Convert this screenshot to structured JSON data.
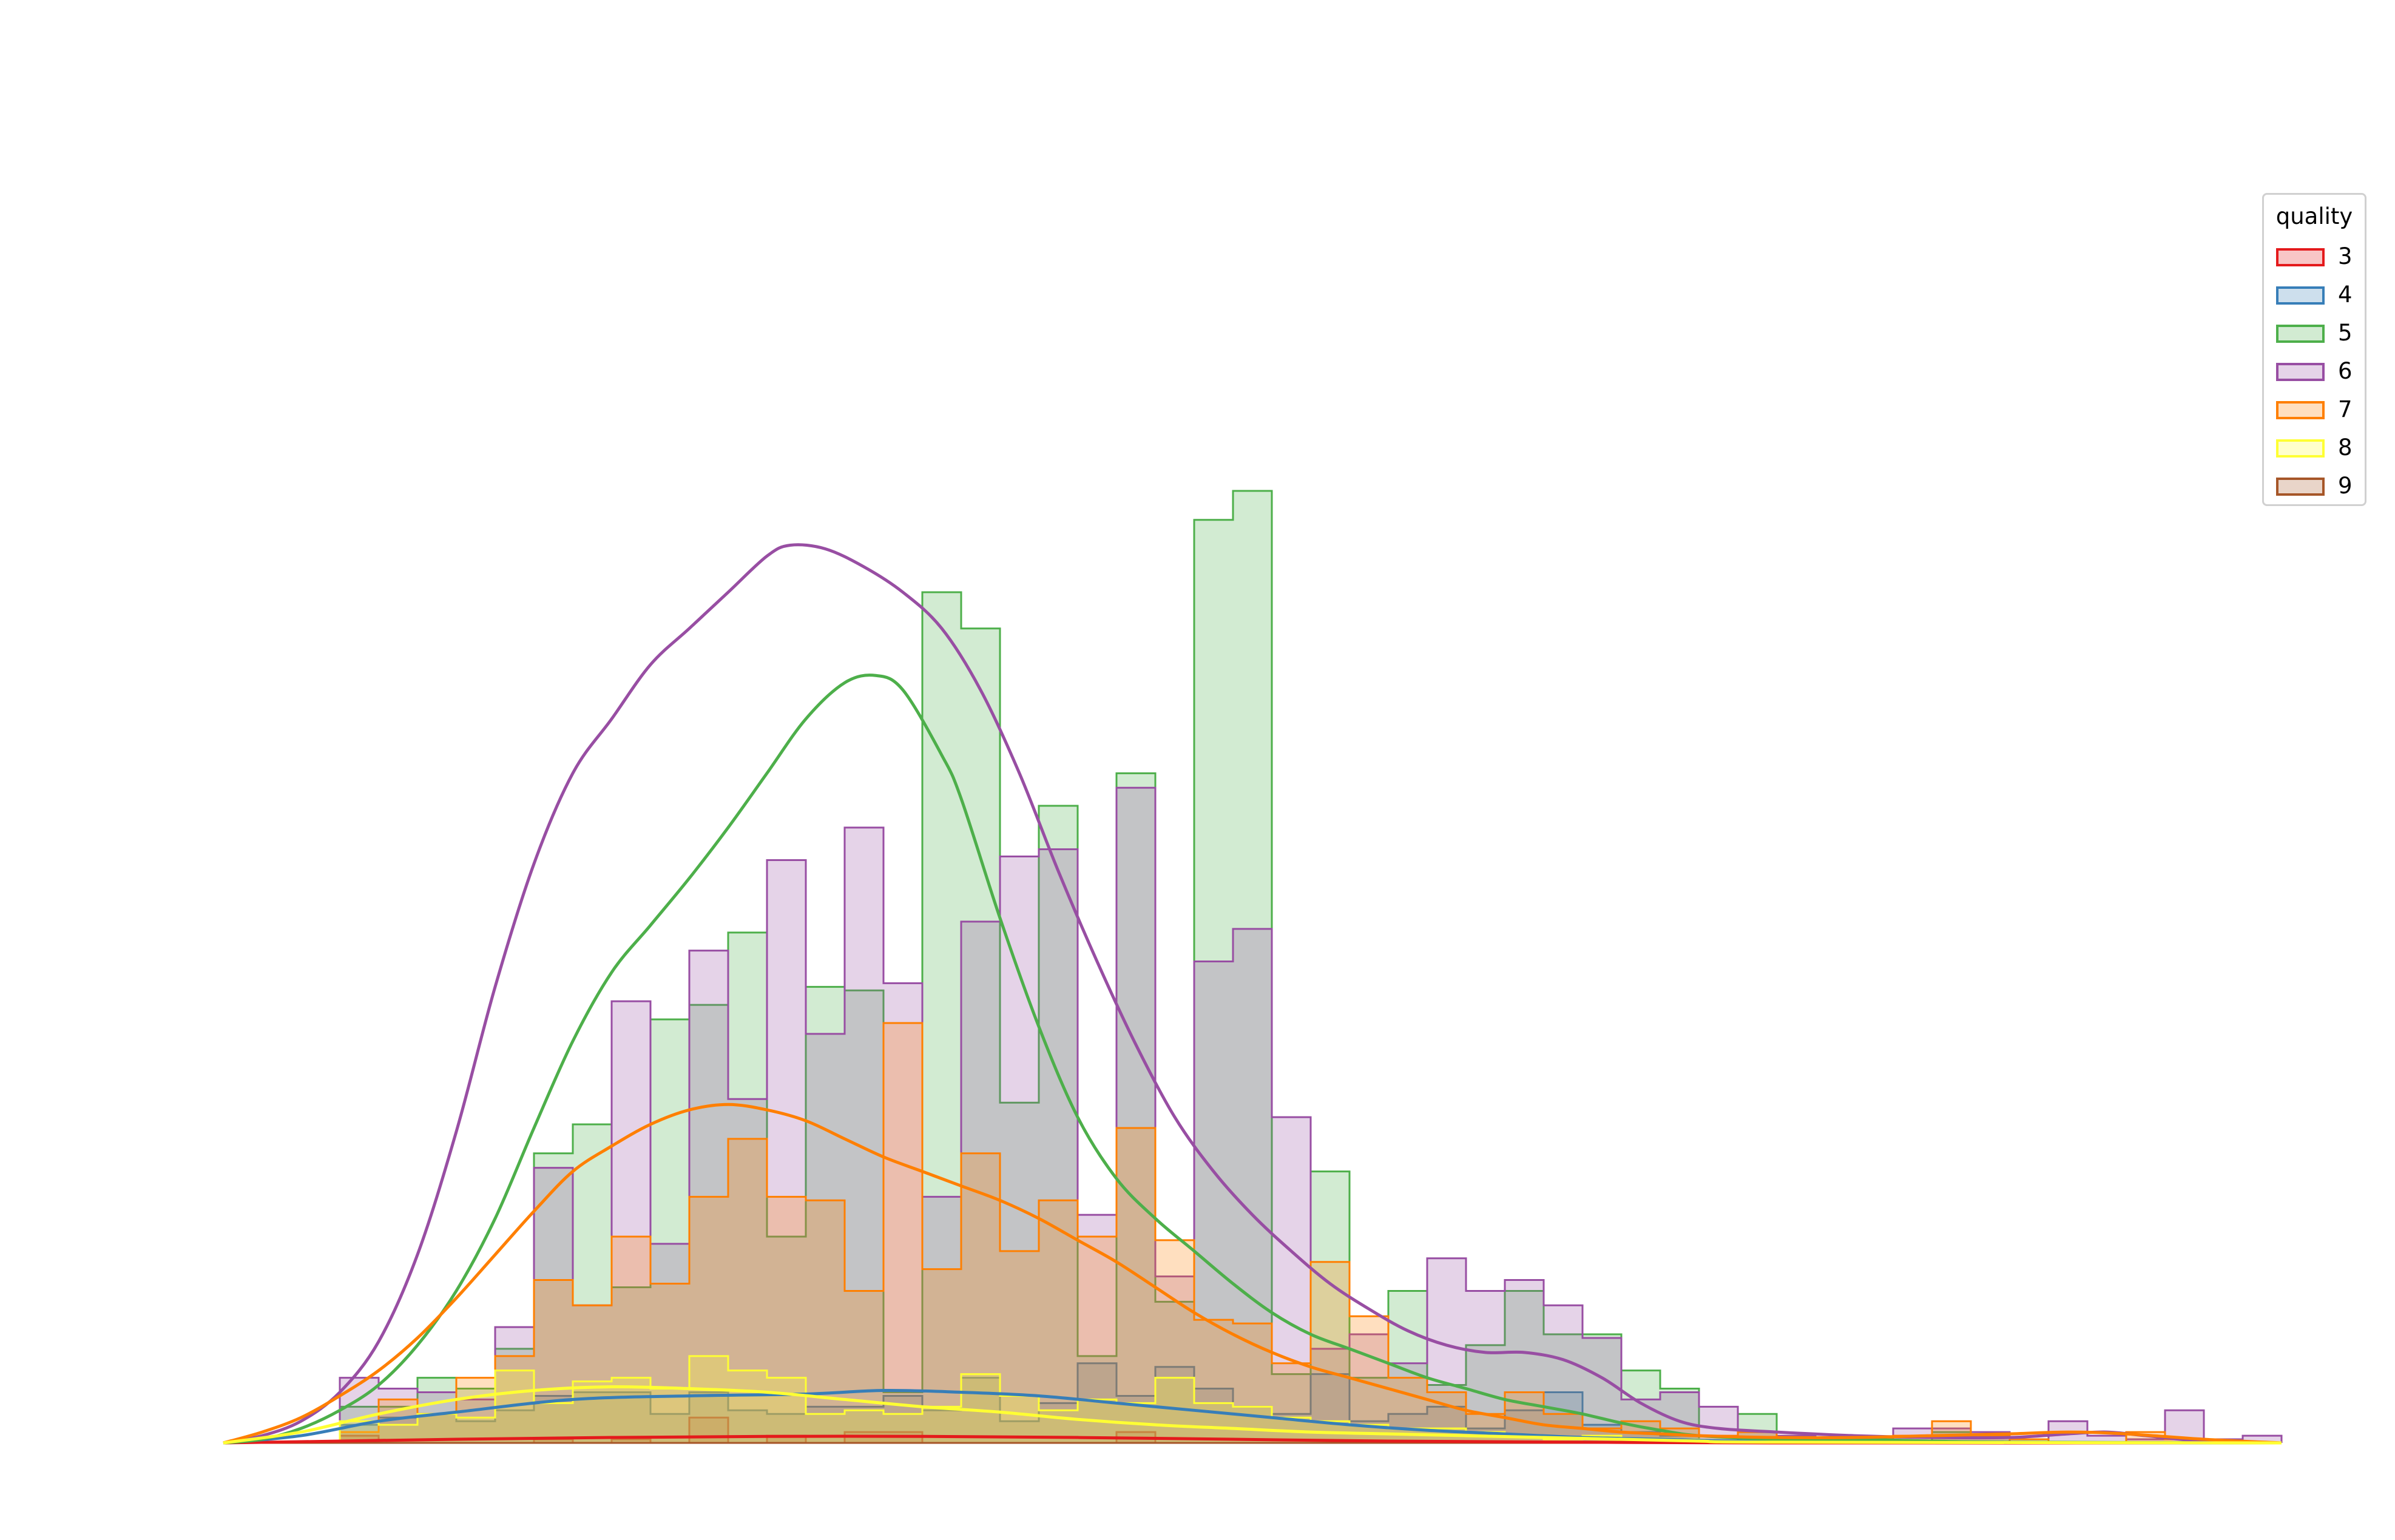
{
  "chart_data": {
    "type": "histogram",
    "xlim": [
      0,
      53
    ],
    "ylim": [
      0,
      35
    ],
    "bins": 53,
    "kde": true,
    "axes_visible": false,
    "legend": {
      "title": "quality",
      "placement": "upper-right"
    },
    "series": [
      {
        "name": "3",
        "color": "#e41a1c",
        "counts": [
          0,
          0,
          0,
          0.2,
          0,
          0,
          0,
          0,
          0.1,
          0,
          0.1,
          0,
          0.7,
          0,
          0.2,
          0,
          0.3,
          0.3,
          0,
          0,
          0,
          0,
          0,
          0.3,
          0,
          0,
          0,
          0,
          0,
          0,
          0,
          0,
          0,
          0,
          0,
          0,
          0,
          0,
          0,
          0,
          0,
          0,
          0,
          0,
          0,
          0,
          0,
          0,
          0,
          0,
          0,
          0,
          0
        ]
      },
      {
        "name": "4",
        "color": "#377eb8",
        "counts": [
          0,
          0,
          0,
          0.5,
          0.7,
          0.8,
          0.6,
          0.9,
          1.3,
          1.4,
          1.4,
          0.8,
          1.4,
          0.9,
          0.8,
          1.0,
          1.0,
          1.3,
          0.9,
          1.8,
          0.6,
          1.1,
          2.2,
          1.3,
          2.1,
          1.5,
          1.0,
          0.8,
          1.9,
          0.6,
          0.8,
          1.0,
          0.4,
          0.9,
          1.4,
          0.5,
          0.3,
          0.2,
          0,
          0,
          0,
          0,
          0,
          0,
          0,
          0,
          0,
          0,
          0,
          0,
          0,
          0,
          0
        ]
      },
      {
        "name": "5",
        "color": "#4daf4a",
        "counts": [
          0,
          0,
          0,
          1.0,
          1.0,
          1.8,
          1.5,
          2.6,
          8.0,
          8.8,
          4.3,
          11.7,
          12.1,
          14.1,
          5.7,
          12.6,
          12.5,
          1.4,
          23.5,
          22.5,
          9.4,
          17.6,
          2.4,
          18.5,
          3.9,
          25.5,
          26.3,
          1.9,
          7.5,
          1.8,
          4.2,
          1.6,
          2.7,
          4.2,
          3.0,
          3.0,
          2.0,
          1.5,
          0,
          0.8,
          0,
          0,
          0,
          0,
          0.3,
          0.2,
          0,
          0,
          0,
          0,
          0,
          0,
          0
        ]
      },
      {
        "name": "6",
        "color": "#984ea3",
        "counts": [
          0,
          0,
          0,
          1.8,
          1.5,
          1.4,
          1.2,
          3.2,
          7.6,
          3.8,
          12.2,
          5.5,
          13.6,
          9.5,
          16.1,
          11.3,
          17.0,
          12.7,
          6.8,
          14.4,
          16.2,
          16.4,
          6.3,
          18.1,
          4.6,
          13.3,
          14.2,
          9.0,
          2.6,
          3.0,
          2.2,
          5.1,
          4.2,
          4.5,
          3.8,
          2.9,
          1.2,
          1.4,
          1.0,
          0.3,
          0.2,
          0.1,
          0,
          0.4,
          0.4,
          0.3,
          0,
          0.6,
          0.2,
          0.1,
          0.9,
          0.1,
          0.2
        ]
      },
      {
        "name": "7",
        "color": "#ff7f00",
        "counts": [
          0,
          0,
          0,
          0.3,
          1.2,
          0.8,
          1.8,
          2.4,
          4.5,
          3.8,
          5.7,
          4.4,
          6.8,
          8.4,
          6.8,
          6.7,
          4.2,
          11.6,
          4.8,
          8.0,
          5.3,
          6.7,
          5.7,
          8.7,
          5.6,
          3.4,
          3.3,
          2.2,
          5.0,
          3.5,
          1.8,
          1.4,
          0.8,
          1.4,
          0.8,
          0.4,
          0.6,
          0.4,
          0.2,
          0.3,
          0.1,
          0.1,
          0.1,
          0.2,
          0.6,
          0.2,
          0.1,
          0,
          0,
          0.3,
          0.1,
          0,
          0
        ]
      },
      {
        "name": "8",
        "color": "#ffff33",
        "counts": [
          0,
          0,
          0,
          0.6,
          0.5,
          0.8,
          0.7,
          2.0,
          1.1,
          1.7,
          1.8,
          1.5,
          2.4,
          2.0,
          1.8,
          0.8,
          0.9,
          0.8,
          1.0,
          1.9,
          1.3,
          0.9,
          1.2,
          1.1,
          1.8,
          1.1,
          1.0,
          0.7,
          0.6,
          0.5,
          0.4,
          0.4,
          0.3,
          0.2,
          0.1,
          0.2,
          0.1,
          0.1,
          0,
          0,
          0,
          0,
          0,
          0,
          0,
          0,
          0,
          0,
          0,
          0,
          0,
          0,
          0
        ]
      },
      {
        "name": "9",
        "color": "#a65628",
        "counts": [
          0,
          0,
          0,
          0,
          0,
          0,
          0,
          0,
          0,
          0,
          0,
          0,
          0,
          0,
          0,
          0,
          0,
          0,
          0,
          0,
          0,
          0,
          0,
          0,
          0,
          0,
          0,
          0,
          0,
          0,
          0,
          0,
          0,
          0,
          0,
          0,
          0,
          0,
          0,
          0,
          0,
          0,
          0,
          0,
          0,
          0,
          0,
          0,
          0,
          0,
          0,
          0,
          0
        ]
      }
    ],
    "kde_curves": [
      {
        "name": "3",
        "color": "#e41a1c",
        "points": [
          [
            0,
            0
          ],
          [
            3,
            0.05
          ],
          [
            6,
            0.1
          ],
          [
            10,
            0.15
          ],
          [
            14,
            0.18
          ],
          [
            18,
            0.18
          ],
          [
            22,
            0.15
          ],
          [
            26,
            0.1
          ],
          [
            30,
            0.05
          ],
          [
            35,
            0.02
          ],
          [
            40,
            0
          ],
          [
            53,
            0
          ]
        ]
      },
      {
        "name": "4",
        "color": "#377eb8",
        "points": [
          [
            0,
            0
          ],
          [
            2,
            0.2
          ],
          [
            4,
            0.6
          ],
          [
            6,
            0.85
          ],
          [
            9,
            1.2
          ],
          [
            12,
            1.3
          ],
          [
            15,
            1.35
          ],
          [
            17,
            1.45
          ],
          [
            19,
            1.4
          ],
          [
            21,
            1.3
          ],
          [
            23,
            1.1
          ],
          [
            25,
            0.9
          ],
          [
            27,
            0.7
          ],
          [
            29,
            0.5
          ],
          [
            31,
            0.35
          ],
          [
            33,
            0.25
          ],
          [
            35,
            0.15
          ],
          [
            37,
            0.1
          ],
          [
            39,
            0.05
          ],
          [
            42,
            0.02
          ],
          [
            53,
            0
          ]
        ]
      },
      {
        "name": "5",
        "color": "#4daf4a",
        "points": [
          [
            0,
            0
          ],
          [
            1,
            0.1
          ],
          [
            2,
            0.4
          ],
          [
            3,
            0.9
          ],
          [
            4,
            1.6
          ],
          [
            5,
            2.7
          ],
          [
            6,
            4.2
          ],
          [
            7,
            6.2
          ],
          [
            8,
            8.7
          ],
          [
            9,
            11.1
          ],
          [
            10,
            13.0
          ],
          [
            11,
            14.3
          ],
          [
            12,
            15.6
          ],
          [
            13,
            17.0
          ],
          [
            14,
            18.5
          ],
          [
            15,
            20.0
          ],
          [
            16,
            21.0
          ],
          [
            16.8,
            21.2
          ],
          [
            17.5,
            20.8
          ],
          [
            18.5,
            19.0
          ],
          [
            19,
            17.8
          ],
          [
            20,
            14.5
          ],
          [
            21,
            11.5
          ],
          [
            22,
            9.0
          ],
          [
            23,
            7.3
          ],
          [
            24,
            6.2
          ],
          [
            25,
            5.3
          ],
          [
            26,
            4.4
          ],
          [
            27,
            3.6
          ],
          [
            28,
            3.0
          ],
          [
            29,
            2.6
          ],
          [
            30,
            2.2
          ],
          [
            31,
            1.8
          ],
          [
            32,
            1.5
          ],
          [
            33,
            1.2
          ],
          [
            34,
            1.0
          ],
          [
            35,
            0.8
          ],
          [
            36,
            0.55
          ],
          [
            37,
            0.35
          ],
          [
            38,
            0.2
          ],
          [
            40,
            0.1
          ],
          [
            42,
            0.1
          ],
          [
            44,
            0.05
          ],
          [
            46,
            0.02
          ],
          [
            53,
            0
          ]
        ]
      },
      {
        "name": "6",
        "color": "#984ea3",
        "points": [
          [
            0,
            0
          ],
          [
            1,
            0.2
          ],
          [
            2,
            0.6
          ],
          [
            3,
            1.4
          ],
          [
            4,
            2.8
          ],
          [
            5,
            5.2
          ],
          [
            6,
            8.6
          ],
          [
            7,
            12.6
          ],
          [
            8,
            16.0
          ],
          [
            9,
            18.5
          ],
          [
            10,
            20.0
          ],
          [
            11,
            21.5
          ],
          [
            12,
            22.5
          ],
          [
            13,
            23.5
          ],
          [
            14,
            24.5
          ],
          [
            14.6,
            24.8
          ],
          [
            15.5,
            24.7
          ],
          [
            16.5,
            24.2
          ],
          [
            17.5,
            23.5
          ],
          [
            18.5,
            22.5
          ],
          [
            19.5,
            20.8
          ],
          [
            20.5,
            18.5
          ],
          [
            21.5,
            15.8
          ],
          [
            22.5,
            13.3
          ],
          [
            23.5,
            11.0
          ],
          [
            24.5,
            9.0
          ],
          [
            25.5,
            7.5
          ],
          [
            26.5,
            6.3
          ],
          [
            27.5,
            5.3
          ],
          [
            28.5,
            4.4
          ],
          [
            29.5,
            3.7
          ],
          [
            30.5,
            3.1
          ],
          [
            31.5,
            2.7
          ],
          [
            32.5,
            2.5
          ],
          [
            33.5,
            2.5
          ],
          [
            34.5,
            2.3
          ],
          [
            35.5,
            1.8
          ],
          [
            36.5,
            1.1
          ],
          [
            37.5,
            0.6
          ],
          [
            38.5,
            0.4
          ],
          [
            40,
            0.3
          ],
          [
            42,
            0.2
          ],
          [
            44,
            0.15
          ],
          [
            46,
            0.15
          ],
          [
            47.5,
            0.25
          ],
          [
            48.5,
            0.3
          ],
          [
            49.5,
            0.2
          ],
          [
            51,
            0.05
          ],
          [
            53,
            0
          ]
        ]
      },
      {
        "name": "7",
        "color": "#ff7f00",
        "points": [
          [
            0,
            0
          ],
          [
            1,
            0.3
          ],
          [
            2,
            0.7
          ],
          [
            3,
            1.3
          ],
          [
            4,
            2.0
          ],
          [
            5,
            2.9
          ],
          [
            6,
            4.0
          ],
          [
            7,
            5.2
          ],
          [
            8,
            6.4
          ],
          [
            9,
            7.5
          ],
          [
            10,
            8.2
          ],
          [
            11,
            8.8
          ],
          [
            12,
            9.2
          ],
          [
            13,
            9.35
          ],
          [
            14,
            9.2
          ],
          [
            15,
            8.9
          ],
          [
            16,
            8.4
          ],
          [
            17,
            7.9
          ],
          [
            18,
            7.5
          ],
          [
            19,
            7.1
          ],
          [
            20,
            6.7
          ],
          [
            21,
            6.2
          ],
          [
            22,
            5.6
          ],
          [
            23,
            5.0
          ],
          [
            24,
            4.3
          ],
          [
            25,
            3.6
          ],
          [
            26,
            3.0
          ],
          [
            27,
            2.5
          ],
          [
            28,
            2.1
          ],
          [
            29,
            1.8
          ],
          [
            30,
            1.5
          ],
          [
            31,
            1.2
          ],
          [
            32,
            0.9
          ],
          [
            33,
            0.7
          ],
          [
            34,
            0.5
          ],
          [
            35,
            0.4
          ],
          [
            36,
            0.3
          ],
          [
            37,
            0.25
          ],
          [
            38,
            0.2
          ],
          [
            40,
            0.15
          ],
          [
            42,
            0.15
          ],
          [
            44,
            0.2
          ],
          [
            46,
            0.25
          ],
          [
            47.5,
            0.3
          ],
          [
            49,
            0.25
          ],
          [
            51,
            0.1
          ],
          [
            53,
            0
          ]
        ]
      },
      {
        "name": "8",
        "color": "#ffff33",
        "points": [
          [
            0,
            0
          ],
          [
            2,
            0.3
          ],
          [
            4,
            0.8
          ],
          [
            6,
            1.2
          ],
          [
            8,
            1.45
          ],
          [
            10,
            1.55
          ],
          [
            12,
            1.5
          ],
          [
            14,
            1.4
          ],
          [
            16,
            1.2
          ],
          [
            18,
            1.0
          ],
          [
            20,
            0.85
          ],
          [
            22,
            0.65
          ],
          [
            24,
            0.5
          ],
          [
            26,
            0.4
          ],
          [
            28,
            0.3
          ],
          [
            30,
            0.25
          ],
          [
            32,
            0.2
          ],
          [
            34,
            0.15
          ],
          [
            36,
            0.1
          ],
          [
            38,
            0.05
          ],
          [
            40,
            0.02
          ],
          [
            53,
            0
          ]
        ]
      }
    ]
  }
}
